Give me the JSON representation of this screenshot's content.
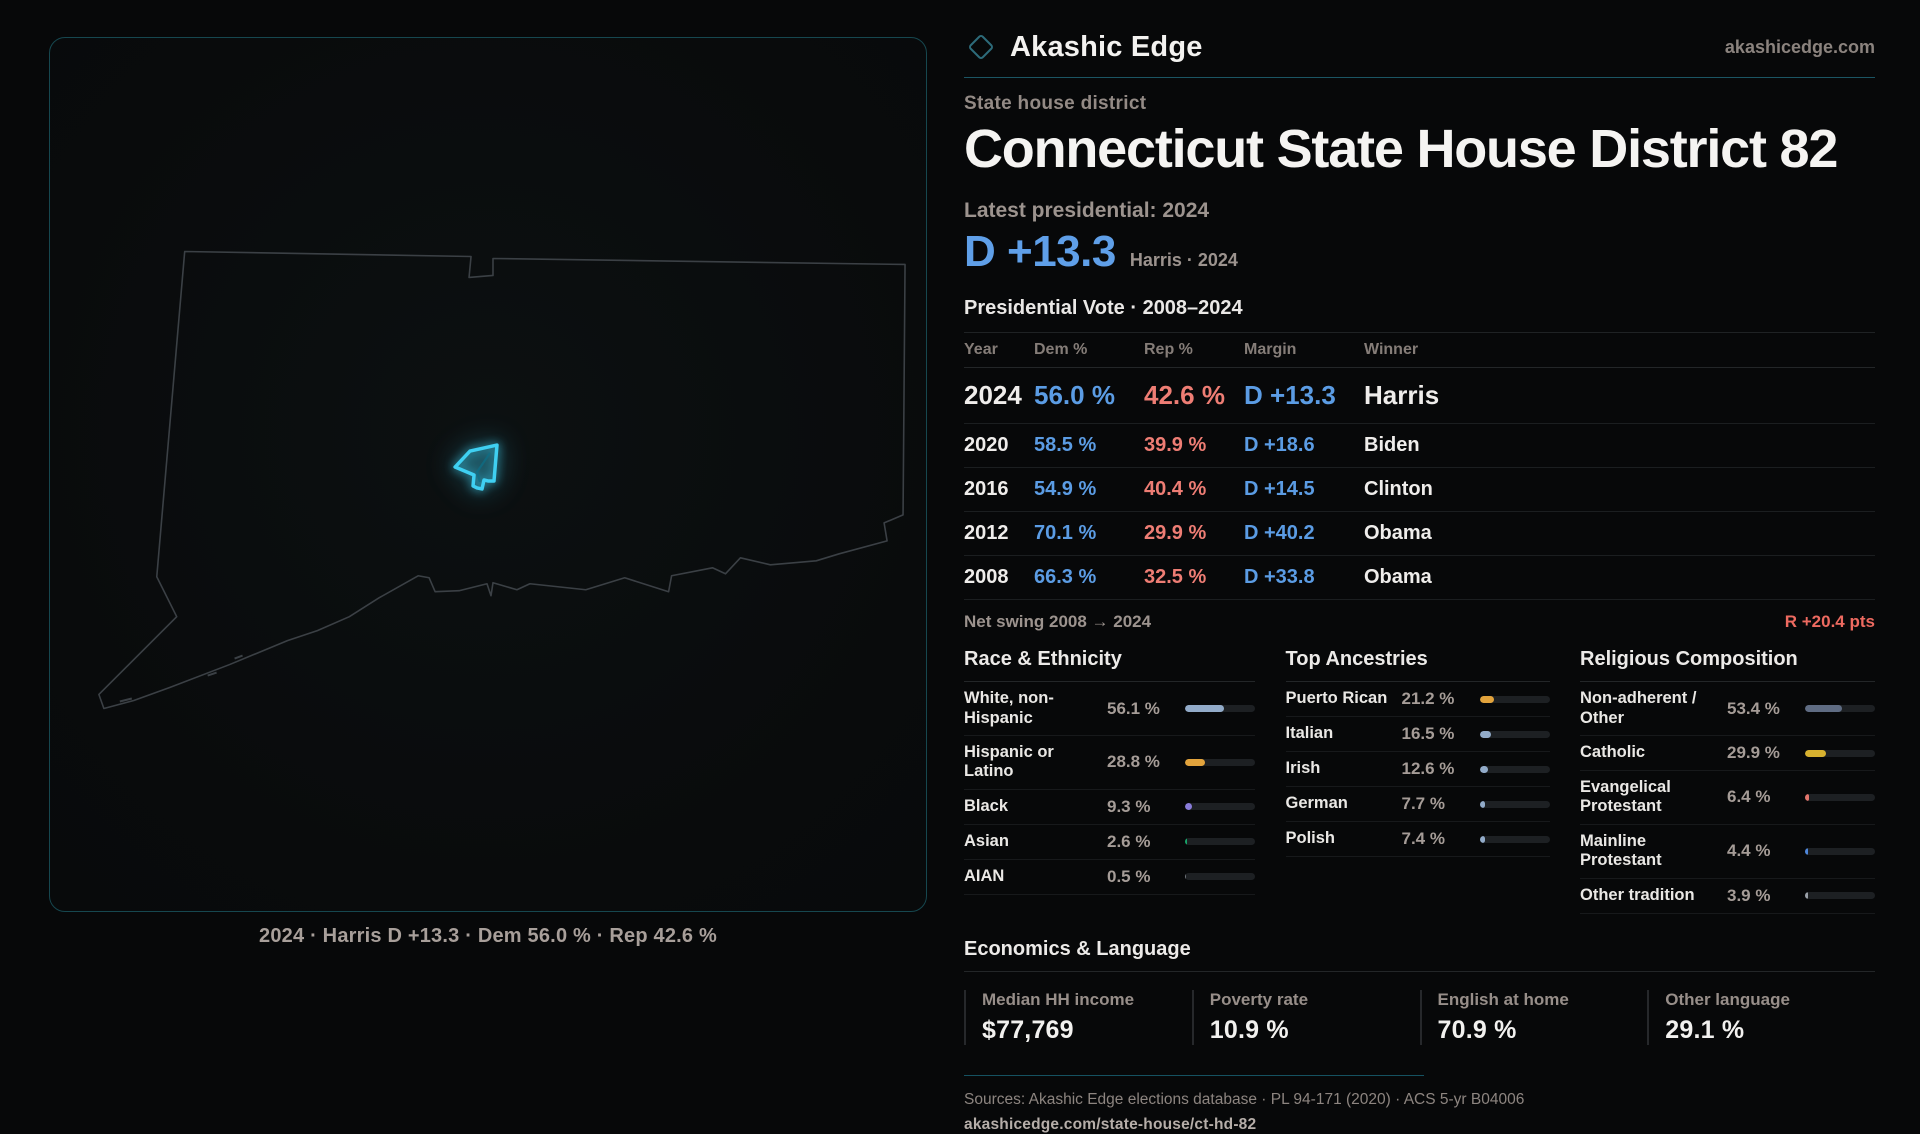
{
  "brand": {
    "name": "Akashic Edge",
    "site": "akashicedge.com"
  },
  "map": {
    "caption": "2024 · Harris D +13.3 · Dem 56.0 % · Rep 42.6 %"
  },
  "header": {
    "kicker": "State house district",
    "title": "Connecticut State House District 82"
  },
  "latest": {
    "label": "Latest presidential: 2024",
    "margin": "D +13.3",
    "sub": "Harris · 2024"
  },
  "table": {
    "title": "Presidential Vote · 2008–2024",
    "columns": [
      "Year",
      "Dem %",
      "Rep %",
      "Margin",
      "Winner"
    ],
    "rows": [
      {
        "year": "2024",
        "dem": "56.0 %",
        "rep": "42.6 %",
        "margin": "D +13.3",
        "winner": "Harris"
      },
      {
        "year": "2020",
        "dem": "58.5 %",
        "rep": "39.9 %",
        "margin": "D +18.6",
        "winner": "Biden"
      },
      {
        "year": "2016",
        "dem": "54.9 %",
        "rep": "40.4 %",
        "margin": "D +14.5",
        "winner": "Clinton"
      },
      {
        "year": "2012",
        "dem": "70.1 %",
        "rep": "29.9 %",
        "margin": "D +40.2",
        "winner": "Obama"
      },
      {
        "year": "2008",
        "dem": "66.3 %",
        "rep": "32.5 %",
        "margin": "D +33.8",
        "winner": "Obama"
      }
    ]
  },
  "net_swing": {
    "label": "Net swing 2008 → 2024",
    "value": "R +20.4 pts"
  },
  "distribution_panels": [
    {
      "title": "Race & Ethnicity",
      "items": [
        {
          "label": "White, non-Hispanic",
          "value": "56.1 %",
          "pct": 56.1,
          "color": "#92abc9"
        },
        {
          "label": "Hispanic or Latino",
          "value": "28.8 %",
          "pct": 28.8,
          "color": "#e2a33c"
        },
        {
          "label": "Black",
          "value": "9.3 %",
          "pct": 9.3,
          "color": "#897cda"
        },
        {
          "label": "Asian",
          "value": "2.6 %",
          "pct": 2.6,
          "color": "#17a468"
        },
        {
          "label": "AIAN",
          "value": "0.5 %",
          "pct": 0.5,
          "color": "#72777d"
        }
      ]
    },
    {
      "title": "Top Ancestries",
      "items": [
        {
          "label": "Puerto Rican",
          "value": "21.2 %",
          "pct": 21.2,
          "color": "#e2a33c"
        },
        {
          "label": "Italian",
          "value": "16.5 %",
          "pct": 16.5,
          "color": "#92abc9"
        },
        {
          "label": "Irish",
          "value": "12.6 %",
          "pct": 12.6,
          "color": "#92abc9"
        },
        {
          "label": "German",
          "value": "7.7 %",
          "pct": 7.7,
          "color": "#92abc9"
        },
        {
          "label": "Polish",
          "value": "7.4 %",
          "pct": 7.4,
          "color": "#92abc9"
        }
      ]
    },
    {
      "title": "Religious Composition",
      "items": [
        {
          "label": "Non-adherent / Other",
          "value": "53.4 %",
          "pct": 53.4,
          "color": "#5f6c83"
        },
        {
          "label": "Catholic",
          "value": "29.9 %",
          "pct": 29.9,
          "color": "#d7b12f"
        },
        {
          "label": "Evangelical Protestant",
          "value": "6.4 %",
          "pct": 6.4,
          "color": "#e2756c"
        },
        {
          "label": "Mainline Protestant",
          "value": "4.4 %",
          "pct": 4.4,
          "color": "#4e86da"
        },
        {
          "label": "Other tradition",
          "value": "3.9 %",
          "pct": 3.9,
          "color": "#9aa0a8"
        }
      ]
    }
  ],
  "economics": {
    "title": "Economics & Language",
    "stats": [
      {
        "label": "Median HH income",
        "value": "$77,769"
      },
      {
        "label": "Poverty rate",
        "value": "10.9 %"
      },
      {
        "label": "English at home",
        "value": "70.9 %"
      },
      {
        "label": "Other language",
        "value": "29.1 %"
      }
    ]
  },
  "footer": {
    "sources": "Sources: Akashic Edge elections database · PL 94-171 (2020) · ACS 5-yr B04006",
    "url": "akashicedge.com/state-house/ct-hd-82"
  },
  "colors": {
    "dem_blue": "#5b9ce4",
    "rep_red": "#ee7d74",
    "swing_red": "#ed6a60",
    "accent_teal": "#1b5563",
    "district_cyan": "#3fd0f2"
  }
}
